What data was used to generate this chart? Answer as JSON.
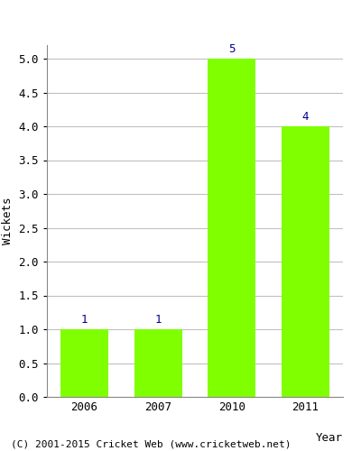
{
  "categories": [
    "2006",
    "2007",
    "2010",
    "2011"
  ],
  "values": [
    1,
    1,
    5,
    4
  ],
  "bar_color": "#7FFF00",
  "bar_edge_color": "#7FFF00",
  "xlabel": "Year",
  "ylabel": "Wickets",
  "ylim": [
    0,
    5.2
  ],
  "yticks": [
    0.0,
    0.5,
    1.0,
    1.5,
    2.0,
    2.5,
    3.0,
    3.5,
    4.0,
    4.5,
    5.0
  ],
  "annotation_color": "#00008B",
  "annotation_fontsize": 9,
  "xlabel_fontsize": 9,
  "ylabel_fontsize": 9,
  "tick_fontsize": 9,
  "background_color": "#ffffff",
  "grid_color": "#c0c0c0",
  "footer_text": "(C) 2001-2015 Cricket Web (www.cricketweb.net)",
  "footer_fontsize": 8,
  "footer_color": "#000000",
  "bar_width": 0.65
}
